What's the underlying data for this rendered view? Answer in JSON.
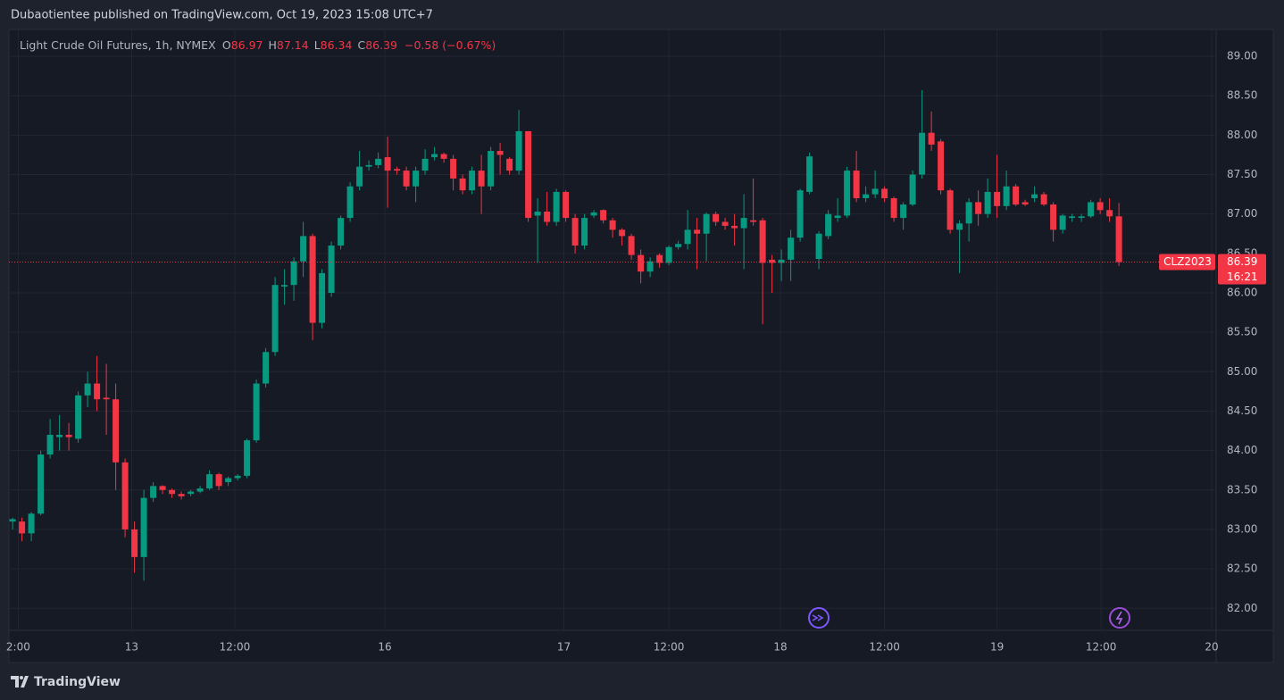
{
  "header": "Dubaotientee published on TradingView.com, Oct 19, 2023 15:08 UTC+7",
  "footer": "TradingView",
  "chart_data": {
    "type": "candlestick",
    "title": "Light Crude Oil Futures, 1h, NYMEX",
    "ohlc_labels": [
      "O",
      "H",
      "L",
      "C"
    ],
    "change": "−0.58 (−0.67%)",
    "symbol": "CLZ2023",
    "countdown": "16:21",
    "up_color": "#089981",
    "down_color": "#f23645",
    "grid": true,
    "categories": [
      null,
      null,
      null,
      null,
      null,
      null,
      null,
      null,
      null,
      null,
      null,
      null,
      null,
      null,
      null,
      null,
      null,
      null,
      null,
      null,
      null,
      null,
      null,
      null,
      null,
      null,
      null,
      null,
      null,
      null,
      null,
      null,
      null,
      null,
      null,
      null,
      null,
      null,
      null,
      null,
      null,
      null,
      null,
      null,
      null,
      null,
      null,
      null,
      null,
      null,
      null,
      null,
      null,
      null,
      null,
      null,
      null,
      null,
      null,
      null,
      null,
      null,
      null,
      null,
      null,
      null,
      null,
      null,
      null,
      null,
      null,
      null,
      null,
      null,
      null,
      null,
      null,
      null,
      null,
      null,
      null,
      null,
      null,
      null,
      null,
      null,
      null,
      null,
      null,
      null,
      null,
      null,
      null,
      null,
      null,
      null,
      null,
      null,
      null,
      null,
      null,
      null,
      null,
      null,
      null,
      null,
      null,
      null,
      null,
      null,
      null,
      null,
      null,
      null,
      null,
      null,
      null,
      null,
      null
    ],
    "open": [
      83.1,
      83.1,
      82.95,
      83.2,
      83.95,
      84.17,
      84.2,
      84.15,
      84.7,
      84.85,
      84.67,
      84.65,
      83.85,
      83.0,
      82.65,
      83.4,
      83.55,
      83.5,
      83.45,
      83.45,
      83.48,
      83.52,
      83.7,
      83.6,
      83.65,
      83.68,
      84.13,
      84.85,
      85.25,
      86.08,
      86.1,
      86.4,
      86.72,
      85.62,
      86.0,
      86.6,
      86.95,
      87.35,
      87.6,
      87.62,
      87.72,
      87.57,
      87.55,
      87.35,
      87.55,
      87.72,
      87.76,
      87.7,
      87.45,
      87.3,
      87.55,
      87.35,
      87.8,
      87.7,
      87.55,
      88.05,
      86.98,
      87.03,
      86.9,
      87.28,
      86.95,
      86.6,
      86.98,
      87.05,
      86.92,
      86.8,
      86.72,
      86.48,
      86.27,
      86.48,
      86.38,
      86.58,
      86.62,
      86.8,
      86.75,
      87.0,
      86.9,
      86.85,
      86.82,
      86.92,
      86.92,
      86.42,
      86.38,
      86.42,
      86.7,
      87.28,
      86.43,
      86.72,
      86.95,
      86.98,
      87.55,
      87.2,
      87.25,
      87.32,
      87.2,
      86.95,
      87.12,
      87.5,
      88.03,
      87.92,
      87.3,
      86.8,
      86.88,
      87.15,
      87.0,
      87.28,
      87.1,
      87.35,
      87.15,
      87.2,
      87.25,
      87.12,
      86.8,
      86.95,
      86.95,
      86.97,
      87.15,
      87.05,
      86.97
    ],
    "high": [
      83.15,
      83.15,
      83.22,
      84.0,
      84.4,
      84.45,
      84.35,
      84.75,
      85.0,
      85.2,
      85.1,
      84.85,
      83.9,
      83.1,
      83.5,
      83.6,
      83.56,
      83.52,
      83.48,
      83.5,
      83.55,
      83.75,
      83.72,
      83.67,
      83.7,
      84.15,
      84.9,
      85.3,
      86.2,
      86.3,
      86.45,
      86.9,
      86.75,
      86.3,
      86.65,
      86.98,
      87.4,
      87.8,
      87.68,
      87.78,
      87.98,
      87.6,
      87.6,
      87.6,
      87.82,
      87.85,
      87.78,
      87.75,
      87.5,
      87.6,
      87.75,
      87.85,
      87.9,
      87.72,
      88.32,
      88.05,
      87.2,
      87.28,
      87.32,
      87.3,
      87.0,
      87.0,
      87.05,
      87.06,
      86.95,
      86.82,
      86.75,
      86.55,
      86.45,
      86.5,
      86.6,
      86.66,
      87.05,
      86.95,
      87.02,
      87.03,
      86.95,
      87.0,
      87.25,
      87.45,
      86.95,
      86.48,
      86.55,
      86.8,
      87.32,
      87.78,
      86.78,
      87.05,
      87.2,
      87.6,
      87.8,
      87.35,
      87.55,
      87.35,
      87.22,
      87.15,
      87.55,
      88.57,
      88.3,
      87.95,
      87.32,
      86.92,
      87.2,
      87.3,
      87.45,
      87.75,
      87.55,
      87.38,
      87.18,
      87.35,
      87.28,
      87.15,
      87.0,
      87.0,
      87.0,
      87.18,
      87.2,
      87.2,
      87.14
    ],
    "low": [
      83.0,
      82.85,
      82.85,
      83.18,
      83.9,
      84.0,
      84.0,
      84.1,
      84.55,
      84.5,
      84.2,
      83.5,
      82.9,
      82.45,
      82.35,
      83.35,
      83.45,
      83.4,
      83.38,
      83.42,
      83.46,
      83.5,
      83.5,
      83.55,
      83.62,
      83.65,
      84.1,
      84.8,
      85.2,
      85.85,
      85.9,
      86.2,
      85.4,
      85.55,
      85.95,
      86.55,
      86.9,
      87.3,
      87.55,
      87.58,
      87.08,
      87.5,
      87.3,
      87.15,
      87.5,
      87.68,
      87.65,
      87.3,
      87.25,
      87.25,
      87.0,
      87.3,
      87.5,
      87.5,
      87.5,
      86.9,
      86.38,
      86.85,
      86.85,
      86.9,
      86.5,
      86.55,
      86.95,
      86.88,
      86.7,
      86.6,
      86.42,
      86.12,
      86.2,
      86.32,
      86.35,
      86.55,
      86.55,
      86.3,
      86.4,
      86.85,
      86.8,
      86.6,
      86.3,
      86.85,
      85.6,
      86.0,
      86.15,
      86.15,
      86.65,
      87.25,
      86.3,
      86.68,
      86.9,
      86.95,
      87.15,
      87.15,
      87.2,
      87.15,
      86.9,
      86.8,
      87.1,
      87.45,
      87.8,
      87.25,
      86.75,
      86.25,
      86.65,
      86.85,
      86.95,
      86.95,
      87.05,
      87.1,
      87.1,
      87.15,
      87.1,
      86.65,
      86.75,
      86.9,
      86.9,
      86.95,
      87.0,
      86.9,
      86.34
    ],
    "close": [
      83.13,
      82.95,
      83.2,
      83.95,
      84.2,
      84.2,
      84.17,
      84.7,
      84.85,
      84.65,
      84.65,
      83.85,
      83.0,
      82.65,
      83.4,
      83.55,
      83.5,
      83.45,
      83.42,
      83.48,
      83.52,
      83.7,
      83.55,
      83.65,
      83.68,
      84.13,
      84.85,
      85.25,
      86.1,
      86.1,
      86.4,
      86.72,
      85.62,
      86.25,
      86.6,
      86.95,
      87.35,
      87.6,
      87.62,
      87.7,
      87.55,
      87.55,
      87.35,
      87.55,
      87.7,
      87.76,
      87.7,
      87.45,
      87.3,
      87.55,
      87.35,
      87.8,
      87.75,
      87.55,
      88.05,
      86.95,
      87.03,
      86.9,
      87.28,
      86.95,
      86.6,
      86.95,
      87.02,
      86.92,
      86.8,
      86.72,
      86.48,
      86.27,
      86.4,
      86.38,
      86.58,
      86.62,
      86.8,
      86.75,
      87.0,
      86.9,
      86.85,
      86.82,
      86.95,
      86.9,
      86.38,
      86.38,
      86.42,
      86.7,
      87.3,
      87.73,
      86.75,
      87.0,
      86.98,
      87.55,
      87.2,
      87.25,
      87.32,
      87.2,
      86.95,
      87.12,
      87.5,
      88.03,
      87.88,
      87.3,
      86.8,
      86.88,
      87.15,
      87.0,
      87.28,
      87.1,
      87.35,
      87.12,
      87.12,
      87.25,
      87.12,
      86.8,
      86.98,
      86.97,
      86.97,
      87.15,
      87.05,
      86.97,
      86.39
    ],
    "xlim": [
      -0.2,
      128.37
    ],
    "xticks": [
      {
        "value": 0.6,
        "label": "2:00"
      },
      {
        "value": 12.7,
        "label": "13"
      },
      {
        "value": 23.7,
        "label": "12:00"
      },
      {
        "value": 39.7,
        "label": "16"
      },
      {
        "value": 58.8,
        "label": "17"
      },
      {
        "value": 70.0,
        "label": "12:00"
      },
      {
        "value": 81.9,
        "label": "18"
      },
      {
        "value": 93.0,
        "label": "12:00"
      },
      {
        "value": 105.0,
        "label": "19"
      },
      {
        "value": 116.1,
        "label": "12:00"
      },
      {
        "value": 127.9,
        "label": "20"
      }
    ],
    "ylim": [
      81.72,
      89.34
    ],
    "yticks": [
      {
        "value": 82,
        "label": "82.00"
      },
      {
        "value": 82.5,
        "label": "82.50"
      },
      {
        "value": 83,
        "label": "83.00"
      },
      {
        "value": 83.5,
        "label": "83.50"
      },
      {
        "value": 84,
        "label": "84.00"
      },
      {
        "value": 84.5,
        "label": "84.50"
      },
      {
        "value": 85,
        "label": "85.00"
      },
      {
        "value": 85.5,
        "label": "85.50"
      },
      {
        "value": 86,
        "label": "86.00"
      },
      {
        "value": 86.5,
        "label": "86.50"
      },
      {
        "value": 87,
        "label": "87.00"
      },
      {
        "value": 87.5,
        "label": "87.50"
      },
      {
        "value": 88,
        "label": "88.00"
      },
      {
        "value": 88.5,
        "label": "88.50"
      },
      {
        "value": 89,
        "label": "89.00"
      }
    ]
  }
}
